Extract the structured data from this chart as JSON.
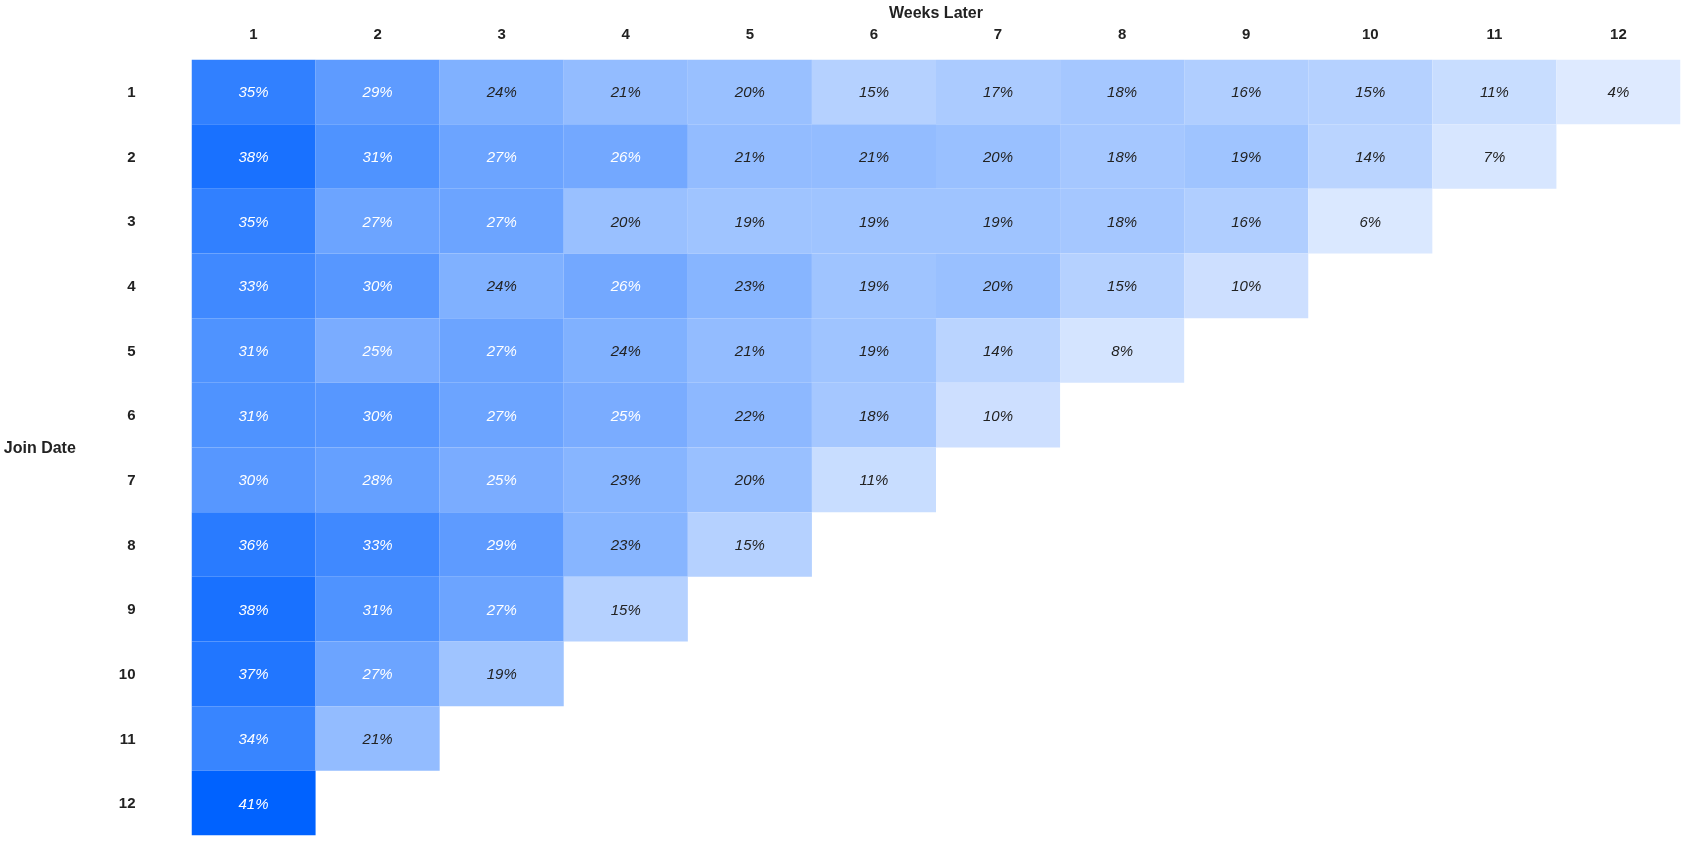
{
  "chart_data": {
    "type": "heatmap",
    "xlabel": "Weeks Later",
    "ylabel": "Join Date",
    "categories": [
      "1",
      "2",
      "3",
      "4",
      "5",
      "6",
      "7",
      "8",
      "9",
      "10",
      "11",
      "12"
    ],
    "y_categories": [
      "1",
      "2",
      "3",
      "4",
      "5",
      "6",
      "7",
      "8",
      "9",
      "10",
      "11",
      "12"
    ],
    "cells": [
      [
        35,
        29,
        24,
        21,
        20,
        15,
        17,
        18,
        16,
        15,
        11,
        4
      ],
      [
        38,
        31,
        27,
        26,
        21,
        21,
        20,
        18,
        19,
        14,
        7,
        null
      ],
      [
        35,
        27,
        27,
        20,
        19,
        19,
        19,
        18,
        16,
        6,
        null,
        null
      ],
      [
        33,
        30,
        24,
        26,
        23,
        19,
        20,
        15,
        10,
        null,
        null,
        null
      ],
      [
        31,
        25,
        27,
        24,
        21,
        19,
        14,
        8,
        null,
        null,
        null,
        null
      ],
      [
        31,
        30,
        27,
        25,
        22,
        18,
        10,
        null,
        null,
        null,
        null,
        null
      ],
      [
        30,
        28,
        25,
        23,
        20,
        11,
        null,
        null,
        null,
        null,
        null,
        null
      ],
      [
        36,
        33,
        29,
        23,
        15,
        null,
        null,
        null,
        null,
        null,
        null,
        null
      ],
      [
        38,
        31,
        27,
        15,
        null,
        null,
        null,
        null,
        null,
        null,
        null,
        null
      ],
      [
        37,
        27,
        19,
        null,
        null,
        null,
        null,
        null,
        null,
        null,
        null,
        null
      ],
      [
        34,
        21,
        null,
        null,
        null,
        null,
        null,
        null,
        null,
        null,
        null,
        null
      ],
      [
        41,
        null,
        null,
        null,
        null,
        null,
        null,
        null,
        null,
        null,
        null,
        null
      ]
    ],
    "cell_labels": [
      [
        "35%",
        "29%",
        "24%",
        "21%",
        "20%",
        "15%",
        "17%",
        "18%",
        "16%",
        "15%",
        "11%",
        "4%"
      ],
      [
        "38%",
        "31%",
        "27%",
        "26%",
        "21%",
        "21%",
        "20%",
        "18%",
        "19%",
        "14%",
        "7%",
        null
      ],
      [
        "35%",
        "27%",
        "27%",
        "20%",
        "19%",
        "19%",
        "19%",
        "18%",
        "16%",
        "6%",
        null,
        null
      ],
      [
        "33%",
        "30%",
        "24%",
        "26%",
        "23%",
        "19%",
        "20%",
        "15%",
        "10%",
        null,
        null,
        null
      ],
      [
        "31%",
        "25%",
        "27%",
        "24%",
        "21%",
        "19%",
        "14%",
        "8%",
        null,
        null,
        null,
        null
      ],
      [
        "31%",
        "30%",
        "27%",
        "25%",
        "22%",
        "18%",
        "10%",
        null,
        null,
        null,
        null,
        null
      ],
      [
        "30%",
        "28%",
        "25%",
        "23%",
        "20%",
        "11%",
        null,
        null,
        null,
        null,
        null,
        null
      ],
      [
        "36%",
        "33%",
        "29%",
        "23%",
        "15%",
        null,
        null,
        null,
        null,
        null,
        null,
        null
      ],
      [
        "38%",
        "31%",
        "27%",
        "15%",
        null,
        null,
        null,
        null,
        null,
        null,
        null,
        null
      ],
      [
        "37%",
        "27%",
        "19%",
        null,
        null,
        null,
        null,
        null,
        null,
        null,
        null,
        null
      ],
      [
        "34%",
        "21%",
        null,
        null,
        null,
        null,
        null,
        null,
        null,
        null,
        null,
        null
      ],
      [
        "41%",
        null,
        null,
        null,
        null,
        null,
        null,
        null,
        null,
        null,
        null,
        null
      ]
    ],
    "grid": false
  }
}
